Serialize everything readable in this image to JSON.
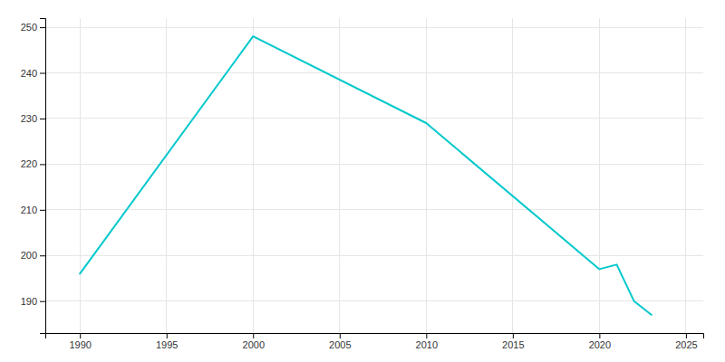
{
  "chart_data": {
    "type": "line",
    "x": [
      1990,
      2000,
      2010,
      2020,
      2021,
      2022,
      2023
    ],
    "values": [
      196,
      248,
      229,
      197,
      198,
      190,
      187
    ],
    "color": "#00c8cc",
    "xlim": [
      1988,
      2026
    ],
    "ylim": [
      183,
      252
    ],
    "xticks": [
      1990,
      1995,
      2000,
      2005,
      2010,
      2015,
      2020,
      2025
    ],
    "yticks": [
      190,
      200,
      210,
      220,
      230,
      240,
      250
    ],
    "grid": true
  }
}
